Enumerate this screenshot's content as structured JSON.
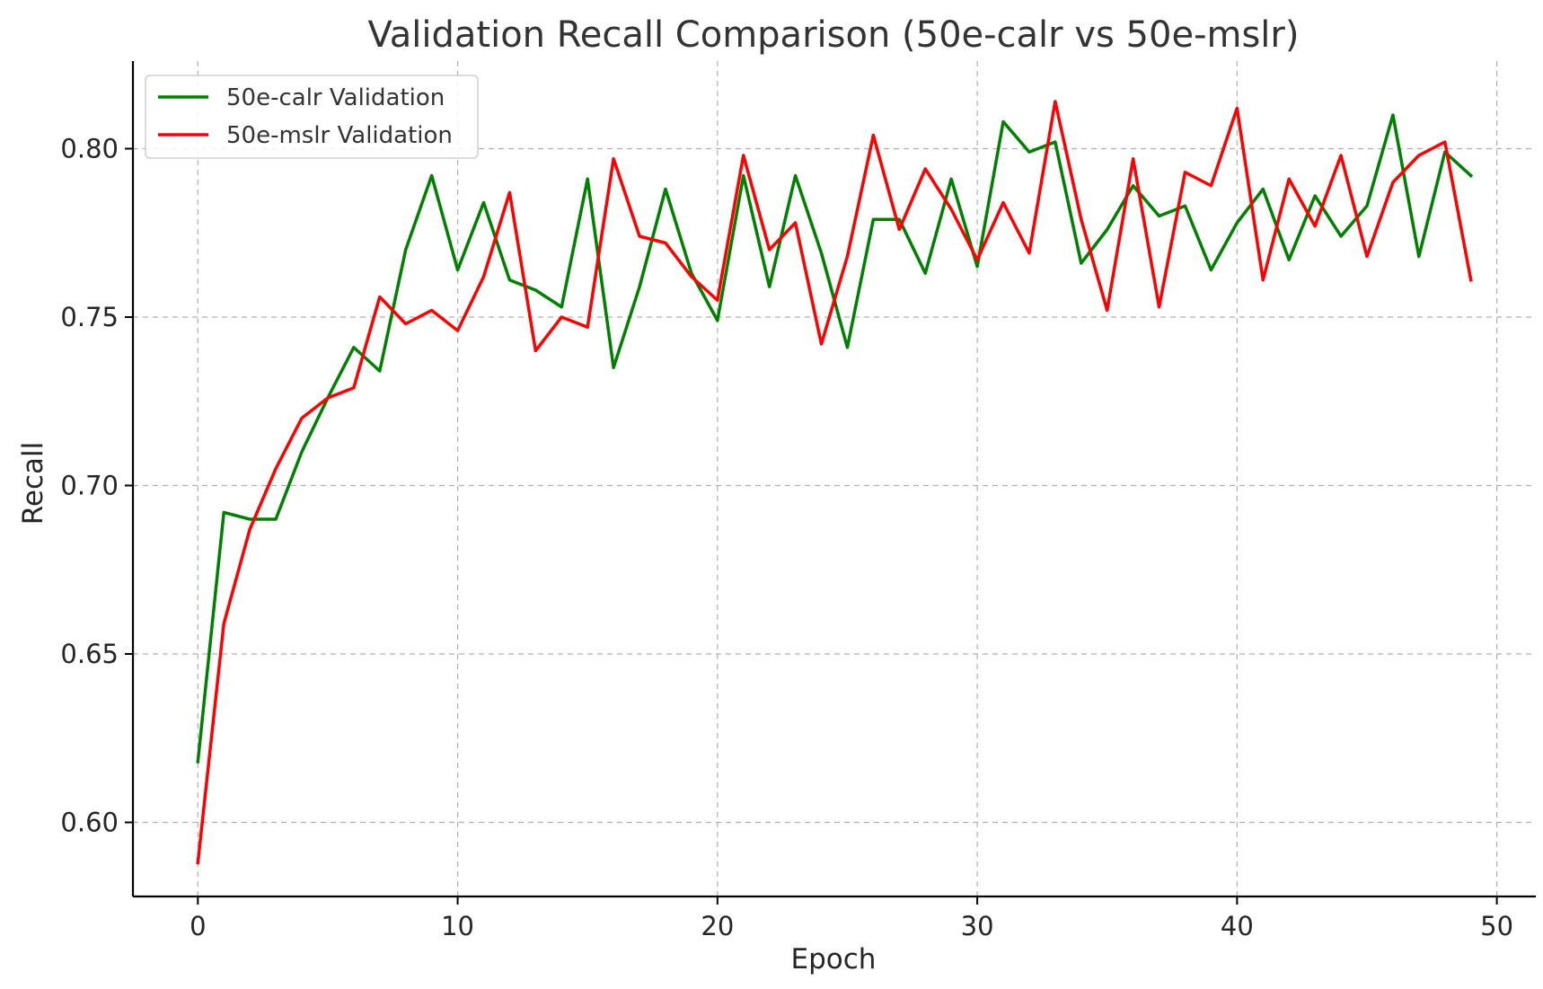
{
  "chart_data": {
    "type": "line",
    "title": "Validation Recall Comparison (50e-calr vs 50e-mslr)",
    "xlabel": "Epoch",
    "ylabel": "Recall",
    "xlim": [
      -2.5,
      51.5
    ],
    "ylim": [
      0.578,
      0.826
    ],
    "xticks": [
      0,
      10,
      20,
      30,
      40,
      50
    ],
    "yticks": [
      0.6,
      0.65,
      0.7,
      0.75,
      0.8
    ],
    "xtick_labels": [
      "0",
      "10",
      "20",
      "30",
      "40",
      "50"
    ],
    "ytick_labels": [
      "0.60",
      "0.65",
      "0.70",
      "0.75",
      "0.80"
    ],
    "grid": true,
    "legend_position": "top-left",
    "x": [
      0,
      1,
      2,
      3,
      4,
      5,
      6,
      7,
      8,
      9,
      10,
      11,
      12,
      13,
      14,
      15,
      16,
      17,
      18,
      19,
      20,
      21,
      22,
      23,
      24,
      25,
      26,
      27,
      28,
      29,
      30,
      31,
      32,
      33,
      34,
      35,
      36,
      37,
      38,
      39,
      40,
      41,
      42,
      43,
      44,
      45,
      46,
      47,
      48,
      49
    ],
    "series": [
      {
        "name": "50e-calr Validation",
        "color": "#008000",
        "values": [
          0.618,
          0.692,
          0.69,
          0.69,
          0.71,
          0.726,
          0.741,
          0.734,
          0.77,
          0.792,
          0.764,
          0.784,
          0.761,
          0.758,
          0.753,
          0.791,
          0.735,
          0.759,
          0.788,
          0.763,
          0.749,
          0.792,
          0.759,
          0.792,
          0.769,
          0.741,
          0.779,
          0.779,
          0.763,
          0.791,
          0.765,
          0.808,
          0.799,
          0.802,
          0.766,
          0.776,
          0.789,
          0.78,
          0.783,
          0.764,
          0.778,
          0.788,
          0.767,
          0.786,
          0.774,
          0.783,
          0.81,
          0.768,
          0.799,
          0.792
        ]
      },
      {
        "name": "50e-mslr Validation",
        "color": "#ff0000",
        "values": [
          0.588,
          0.659,
          0.687,
          0.705,
          0.72,
          0.726,
          0.729,
          0.756,
          0.748,
          0.752,
          0.746,
          0.762,
          0.787,
          0.74,
          0.75,
          0.747,
          0.797,
          0.774,
          0.772,
          0.762,
          0.755,
          0.798,
          0.77,
          0.778,
          0.742,
          0.768,
          0.804,
          0.776,
          0.794,
          0.782,
          0.767,
          0.784,
          0.769,
          0.814,
          0.779,
          0.752,
          0.797,
          0.753,
          0.793,
          0.789,
          0.812,
          0.761,
          0.791,
          0.777,
          0.798,
          0.768,
          0.79,
          0.798,
          0.802,
          0.761
        ]
      }
    ]
  }
}
